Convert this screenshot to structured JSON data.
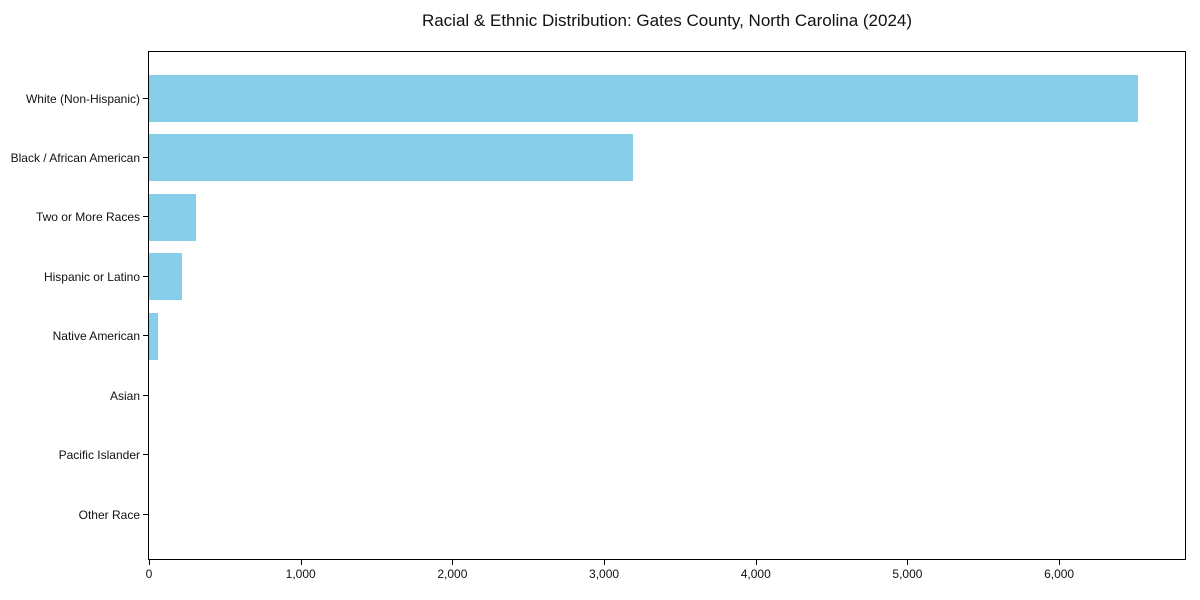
{
  "chart_data": {
    "type": "bar",
    "orientation": "horizontal",
    "title": "Racial & Ethnic Distribution: Gates County, North Carolina (2024)",
    "xlabel": "",
    "ylabel": "",
    "categories": [
      "White (Non-Hispanic)",
      "Black / African American",
      "Two or More Races",
      "Hispanic or Latino",
      "Native American",
      "Asian",
      "Pacific Islander",
      "Other Race"
    ],
    "values": [
      6520,
      3190,
      310,
      220,
      60,
      0,
      0,
      0
    ],
    "xlim": [
      0,
      6830
    ],
    "xticks": {
      "values": [
        0,
        1000,
        2000,
        3000,
        4000,
        5000,
        6000
      ],
      "labels": [
        "0",
        "1,000",
        "2,000",
        "3,000",
        "4,000",
        "5,000",
        "6,000"
      ]
    },
    "grid": false,
    "legend": null,
    "bar_color": "#87CEEB",
    "axis_color": "#000000",
    "text_color": "#111111",
    "background_color": "#ffffff"
  }
}
